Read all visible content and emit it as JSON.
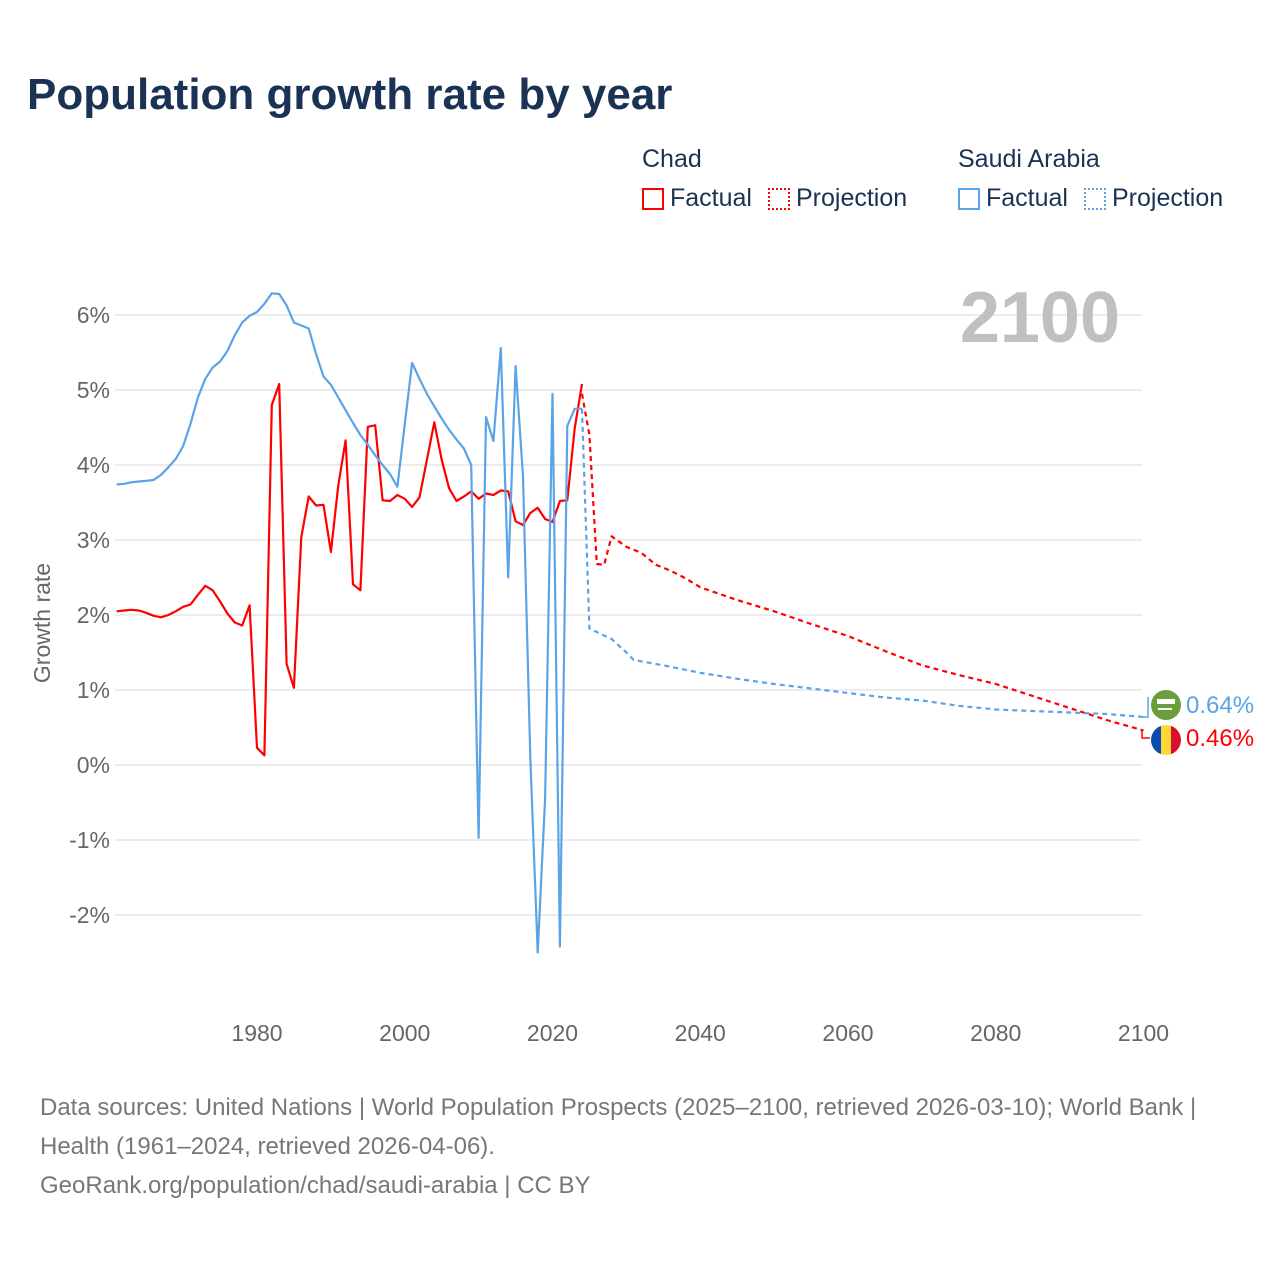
{
  "title": "Population growth rate by year",
  "legend": {
    "groups": [
      {
        "name": "Chad",
        "color": "#ff0000",
        "factual": "Factual",
        "projection": "Projection"
      },
      {
        "name": "Saudi Arabia",
        "color": "#5aa3e8",
        "factual": "Factual",
        "projection": "Projection"
      }
    ]
  },
  "year_watermark": "2100",
  "source": {
    "line1": "Data sources: United Nations | World Population Prospects (2025–2100, retrieved 2026-03-10); World Bank | Health (1961–2024, retrieved 2026-04-06).",
    "line2": "GeoRank.org/population/chad/saudi-arabia | CC BY"
  },
  "chart_data": {
    "type": "line",
    "title": "Population growth rate by year",
    "xlabel": "",
    "ylabel": "Growth rate",
    "xlim": [
      1961,
      2100
    ],
    "ylim": [
      -3.2,
      7
    ],
    "x_ticks": [
      1980,
      2000,
      2020,
      2040,
      2060,
      2080,
      2100
    ],
    "y_ticks": [
      -2,
      -1,
      0,
      1,
      2,
      3,
      4,
      5,
      6
    ],
    "y_tick_labels": [
      "-2%",
      "-1%",
      "0%",
      "1%",
      "2%",
      "3%",
      "4%",
      "5%",
      "6%"
    ],
    "grid": true,
    "series": [
      {
        "name": "Chad Factual",
        "color": "#ff0000",
        "style": "solid",
        "x": [
          1961,
          1962,
          1963,
          1964,
          1965,
          1966,
          1967,
          1968,
          1969,
          1970,
          1971,
          1972,
          1973,
          1974,
          1975,
          1976,
          1977,
          1978,
          1979,
          1980,
          1981,
          1982,
          1983,
          1984,
          1985,
          1986,
          1987,
          1988,
          1989,
          1990,
          1991,
          1992,
          1993,
          1994,
          1995,
          1996,
          1997,
          1998,
          1999,
          2000,
          2001,
          2002,
          2003,
          2004,
          2005,
          2006,
          2007,
          2008,
          2009,
          2010,
          2011,
          2012,
          2013,
          2014,
          2015,
          2016,
          2017,
          2018,
          2019,
          2020,
          2021,
          2022,
          2023,
          2024
        ],
        "y": [
          2.05,
          2.06,
          2.07,
          2.06,
          2.03,
          1.99,
          1.97,
          2.0,
          2.05,
          2.11,
          2.14,
          2.27,
          2.39,
          2.33,
          2.18,
          2.02,
          1.9,
          1.86,
          2.13,
          0.23,
          0.13,
          4.8,
          5.08,
          1.35,
          1.03,
          3.04,
          3.58,
          3.46,
          3.47,
          2.84,
          3.73,
          4.33,
          2.41,
          2.33,
          4.51,
          4.53,
          3.53,
          3.52,
          3.6,
          3.55,
          3.44,
          3.57,
          4.07,
          4.57,
          4.07,
          3.69,
          3.52,
          3.58,
          3.65,
          3.55,
          3.62,
          3.6,
          3.66,
          3.65,
          3.25,
          3.2,
          3.36,
          3.43,
          3.28,
          3.24,
          3.52,
          3.53,
          4.49,
          5.08
        ]
      },
      {
        "name": "Chad Projection",
        "color": "#ff0000",
        "style": "dashed",
        "x": [
          2024,
          2025,
          2026,
          2027,
          2028,
          2030,
          2032,
          2034,
          2036,
          2038,
          2040,
          2045,
          2050,
          2055,
          2060,
          2065,
          2070,
          2075,
          2080,
          2085,
          2090,
          2095,
          2100
        ],
        "y": [
          4.95,
          4.4,
          2.68,
          2.67,
          3.05,
          2.91,
          2.83,
          2.67,
          2.59,
          2.49,
          2.37,
          2.2,
          2.05,
          1.88,
          1.72,
          1.52,
          1.33,
          1.2,
          1.08,
          0.92,
          0.76,
          0.6,
          0.46
        ]
      },
      {
        "name": "Saudi Arabia Factual",
        "color": "#5aa3e8",
        "style": "solid",
        "x": [
          1961,
          1962,
          1963,
          1964,
          1965,
          1966,
          1967,
          1968,
          1969,
          1970,
          1971,
          1972,
          1973,
          1974,
          1975,
          1976,
          1977,
          1978,
          1979,
          1980,
          1981,
          1982,
          1983,
          1984,
          1985,
          1986,
          1987,
          1988,
          1989,
          1990,
          1991,
          1992,
          1993,
          1994,
          1995,
          1996,
          1997,
          1998,
          1999,
          2000,
          2001,
          2002,
          2003,
          2004,
          2005,
          2006,
          2007,
          2008,
          2009,
          2010,
          2011,
          2012,
          2013,
          2014,
          2015,
          2016,
          2017,
          2018,
          2019,
          2020,
          2021,
          2022,
          2023,
          2024
        ],
        "y": [
          3.74,
          3.75,
          3.77,
          3.78,
          3.79,
          3.8,
          3.87,
          3.97,
          4.08,
          4.25,
          4.55,
          4.9,
          5.15,
          5.3,
          5.38,
          5.52,
          5.73,
          5.9,
          5.99,
          6.04,
          6.15,
          6.29,
          6.28,
          6.13,
          5.9,
          5.86,
          5.82,
          5.48,
          5.18,
          5.07,
          4.9,
          4.73,
          4.56,
          4.4,
          4.27,
          4.13,
          4.0,
          3.88,
          3.71,
          4.55,
          5.36,
          5.15,
          4.95,
          4.78,
          4.62,
          4.47,
          4.34,
          4.22,
          4.0,
          -0.97,
          4.64,
          4.32,
          5.56,
          2.5,
          5.32,
          3.85,
          0.1,
          -2.5,
          -0.45,
          4.95,
          -2.42,
          4.52,
          4.75,
          4.75
        ]
      },
      {
        "name": "Saudi Arabia Projection",
        "color": "#5aa3e8",
        "style": "dashed",
        "x": [
          2024,
          2025,
          2028,
          2030,
          2031,
          2035,
          2040,
          2045,
          2050,
          2055,
          2060,
          2065,
          2070,
          2075,
          2080,
          2085,
          2090,
          2095,
          2100
        ],
        "y": [
          4.75,
          1.82,
          1.68,
          1.5,
          1.4,
          1.33,
          1.23,
          1.15,
          1.08,
          1.02,
          0.96,
          0.9,
          0.86,
          0.79,
          0.74,
          0.72,
          0.7,
          0.68,
          0.64
        ]
      }
    ],
    "end_labels": [
      {
        "country": "Saudi Arabia",
        "value": "0.64%",
        "color": "#5aa3e8"
      },
      {
        "country": "Chad",
        "value": "0.46%",
        "color": "#ff0000"
      }
    ]
  }
}
